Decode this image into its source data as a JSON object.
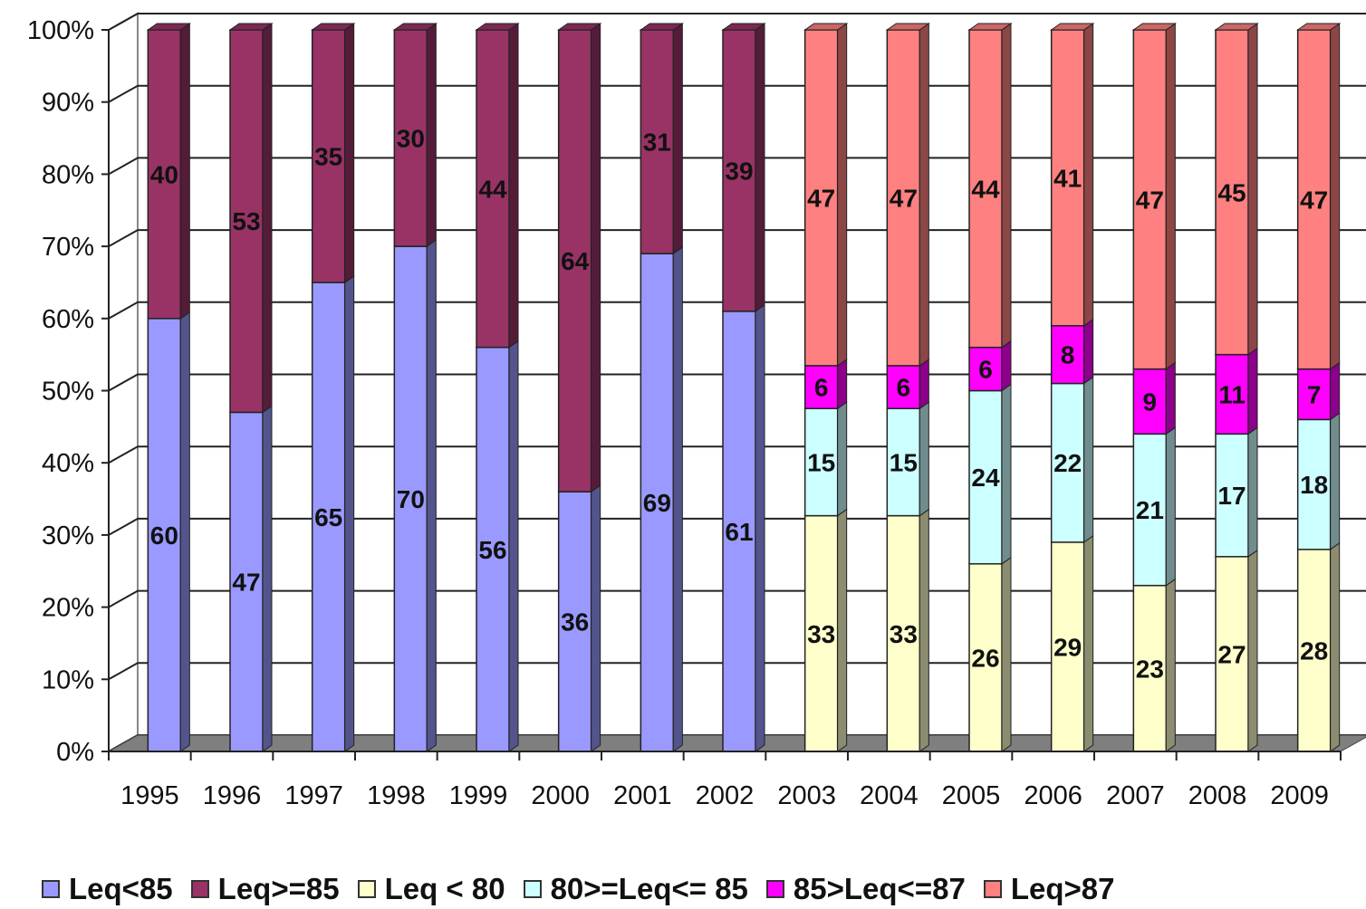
{
  "chart_data": {
    "type": "bar",
    "stacked": "percent",
    "three_d": true,
    "grid": true,
    "legend_position": "bottom",
    "categories": [
      "1995",
      "1996",
      "1997",
      "1998",
      "1999",
      "2000",
      "2001",
      "2002",
      "2003",
      "2004",
      "2005",
      "2006",
      "2007",
      "2008",
      "2009"
    ],
    "y_ticks": [
      "0%",
      "10%",
      "20%",
      "30%",
      "40%",
      "50%",
      "60%",
      "70%",
      "80%",
      "90%",
      "100%"
    ],
    "ylim": [
      0,
      100
    ],
    "series": [
      {
        "name": "Leq<85",
        "color": "#9999ff",
        "values": [
          60,
          47,
          65,
          70,
          56,
          36,
          69,
          61,
          null,
          null,
          null,
          null,
          null,
          null,
          null
        ]
      },
      {
        "name": "Leq>=85",
        "color": "#993366",
        "values": [
          40,
          53,
          35,
          30,
          44,
          64,
          31,
          39,
          null,
          null,
          null,
          null,
          null,
          null,
          null
        ]
      },
      {
        "name": "Leq < 80",
        "color": "#ffffcc",
        "values": [
          null,
          null,
          null,
          null,
          null,
          null,
          null,
          null,
          33,
          33,
          26,
          29,
          23,
          27,
          28
        ]
      },
      {
        "name": "80>=Leq<= 85",
        "color": "#ccffff",
        "values": [
          null,
          null,
          null,
          null,
          null,
          null,
          null,
          null,
          15,
          15,
          24,
          22,
          21,
          17,
          18
        ]
      },
      {
        "name": "85>Leq<=87",
        "color": "#ff00ff",
        "values": [
          null,
          null,
          null,
          null,
          null,
          null,
          null,
          null,
          6,
          6,
          6,
          8,
          9,
          11,
          7
        ]
      },
      {
        "name": "Leq>87",
        "color": "#ff8080",
        "values": [
          null,
          null,
          null,
          null,
          null,
          null,
          null,
          null,
          47,
          47,
          44,
          41,
          47,
          45,
          47
        ]
      }
    ]
  }
}
